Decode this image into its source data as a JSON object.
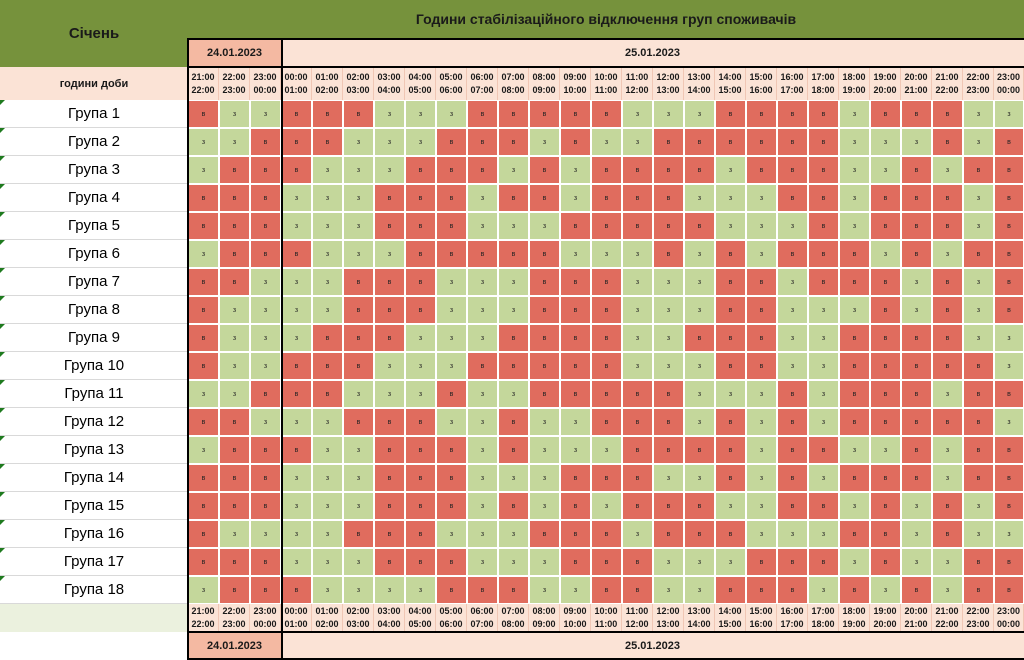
{
  "sheet": {
    "month_label": "Січень",
    "title": "Години стабілізаційного відключення груп споживачів",
    "hours_label": "години доби",
    "date_prev": "24.01.2023",
    "date_next": "25.01.2023"
  },
  "hour_slots": [
    {
      "from": "21:00",
      "to": "22:00"
    },
    {
      "from": "22:00",
      "to": "23:00"
    },
    {
      "from": "23:00",
      "to": "00:00"
    },
    {
      "from": "00:00",
      "to": "01:00"
    },
    {
      "from": "01:00",
      "to": "02:00"
    },
    {
      "from": "02:00",
      "to": "03:00"
    },
    {
      "from": "03:00",
      "to": "04:00"
    },
    {
      "from": "04:00",
      "to": "05:00"
    },
    {
      "from": "05:00",
      "to": "06:00"
    },
    {
      "from": "06:00",
      "to": "07:00"
    },
    {
      "from": "07:00",
      "to": "08:00"
    },
    {
      "from": "08:00",
      "to": "09:00"
    },
    {
      "from": "09:00",
      "to": "10:00"
    },
    {
      "from": "10:00",
      "to": "11:00"
    },
    {
      "from": "11:00",
      "to": "12:00"
    },
    {
      "from": "12:00",
      "to": "13:00"
    },
    {
      "from": "13:00",
      "to": "14:00"
    },
    {
      "from": "14:00",
      "to": "15:00"
    },
    {
      "from": "15:00",
      "to": "16:00"
    },
    {
      "from": "16:00",
      "to": "17:00"
    },
    {
      "from": "17:00",
      "to": "18:00"
    },
    {
      "from": "18:00",
      "to": "19:00"
    },
    {
      "from": "19:00",
      "to": "20:00"
    },
    {
      "from": "20:00",
      "to": "21:00"
    },
    {
      "from": "21:00",
      "to": "22:00"
    },
    {
      "from": "22:00",
      "to": "23:00"
    },
    {
      "from": "23:00",
      "to": "00:00"
    }
  ],
  "codes": {
    "on": "в",
    "off": "з"
  },
  "colors": {
    "on": "#e06c5e",
    "off": "#c4d79b",
    "header_green": "#76923c",
    "header_peach": "#fbe3d6",
    "date_prev_bg": "#f4b9a2"
  },
  "groups": [
    {
      "name": "Група 1",
      "s": "вззвввзззвввввзззввввзвввзз"
    },
    {
      "name": "Група 2",
      "s": "ззвввзззвввзвззввввввзззвзв"
    },
    {
      "name": "Група 3",
      "s": "звввзззвввзвзввввзвввззвзвв"
    },
    {
      "name": "Група 4",
      "s": "вввзззвввзввзвввзззввзвввзв"
    },
    {
      "name": "Група 5",
      "s": "вввзззвввзззвввввзззвзвввзв"
    },
    {
      "name": "Група 6",
      "s": "звввзззвввввзззвзвзвввзвзвв"
    },
    {
      "name": "Група 7",
      "s": "ввзззвввзззвввзззввзвввзвзв"
    },
    {
      "name": "Група 8",
      "s": "вззззвввзззвввзззввзззвзвзв"
    },
    {
      "name": "Група 9",
      "s": "взззвввзззввввззвввззввввзз"
    },
    {
      "name": "Група 10",
      "s": "вззвввзззвввввзззввззвввввз"
    },
    {
      "name": "Група 11",
      "s": "ззвввзззвззвввввзззвзвввзвв"
    },
    {
      "name": "Група 12",
      "s": "ввзззвввззвззвввзвзвзвввввз"
    },
    {
      "name": "Група 13",
      "s": "звввззвввзвзззввввзввззвзвв"
    },
    {
      "name": "Група 14",
      "s": "вввзззвввзззвввззвзвзвввзвв"
    },
    {
      "name": "Група 15",
      "s": "вввзззвввзвзвзвввззввзвзвзв"
    },
    {
      "name": "Група 16",
      "s": "вззззвввзззвввзвввзззввзвзз"
    },
    {
      "name": "Група 17",
      "s": "вввзззвввзззвввзззвввзвззвв"
    },
    {
      "name": "Група 18",
      "s": "звввззззвввззввззвввзвзвзвв"
    }
  ]
}
